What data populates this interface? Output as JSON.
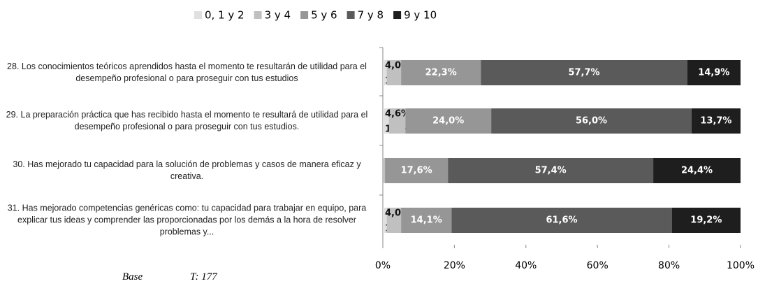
{
  "chart_data": {
    "type": "stacked_bar_horizontal",
    "categories": [
      "28.  Los conocimientos teóricos aprendidos hasta el momento te resultarán de utilidad para el desempeño profesional o para proseguir con tus estudios",
      "29.  La preparación práctica que has recibido hasta el momento te resultará de utilidad para el desempeño profesional o para proseguir con tus estudios.",
      "30.  Has mejorado tu capacidad para la solución de problemas y casos de manera eficaz y creativa.",
      "31.  Has mejorado competencias genéricas como: tu capacidad para trabajar en equipo, para explicar tus ideas y comprender las proporcionadas por los demás a la hora de resolver problemas y..."
    ],
    "series": [
      {
        "name": "0, 1 y 2",
        "color": "#e0e0e0",
        "values": [
          1.1,
          1.7,
          null,
          1.1
        ],
        "value_labels": [
          "1,1%",
          "1,7%",
          null,
          "1,1%"
        ]
      },
      {
        "name": "3 y 4",
        "color": "#c0c0c0",
        "values": [
          4.0,
          4.6,
          0.6,
          4.0
        ],
        "value_labels": [
          "4,0%",
          "4,6%",
          "0,6%",
          "4,0%"
        ]
      },
      {
        "name": "5 y 6",
        "color": "#969696",
        "values": [
          22.3,
          24.0,
          17.6,
          14.1
        ],
        "value_labels": [
          "22,3%",
          "24,0%",
          "17,6%",
          "14,1%"
        ]
      },
      {
        "name": "7 y 8",
        "color": "#5a5a5a",
        "values": [
          57.7,
          56.0,
          57.4,
          61.6
        ],
        "value_labels": [
          "57,7%",
          "56,0%",
          "57,4%",
          "61,6%"
        ]
      },
      {
        "name": "9 y 10",
        "color": "#1e1e1e",
        "values": [
          14.9,
          13.7,
          24.4,
          19.2
        ],
        "value_labels": [
          "14,9%",
          "13,7%",
          "24,4%",
          "19,2%"
        ]
      }
    ],
    "xlim": [
      0,
      100
    ],
    "xticks": [
      {
        "value": 0,
        "label": "0%"
      },
      {
        "value": 20,
        "label": "20%"
      },
      {
        "value": 40,
        "label": "40%"
      },
      {
        "value": 60,
        "label": "60%"
      },
      {
        "value": 80,
        "label": "80%"
      },
      {
        "value": 100,
        "label": "100%"
      }
    ],
    "legend": "top",
    "footnote": [
      "Base",
      "T: 177"
    ]
  }
}
